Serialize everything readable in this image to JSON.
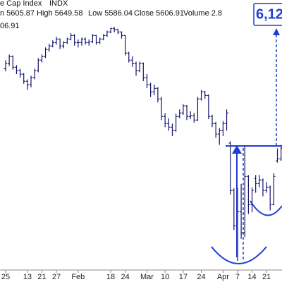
{
  "chart_data": {
    "type": "ohlc",
    "title": "e Cap Index",
    "subtitle": "INDX",
    "annotations": [
      "n 5605.87",
      "High 5649.58",
      "Low 5586.04",
      "Close 5606.91",
      "Volume 2.8",
      "06.91",
      "6,12"
    ],
    "color": "#16166a",
    "annotation_color": "#1f3fd1",
    "ylim": [
      4800,
      6200
    ],
    "categories": [
      "25",
      null,
      null,
      null,
      null,
      null,
      "13",
      null,
      null,
      null,
      "21",
      null,
      null,
      null,
      "27",
      null,
      null,
      null,
      null,
      null,
      "Feb",
      null,
      null,
      null,
      null,
      null,
      null,
      null,
      null,
      "18",
      null,
      null,
      null,
      "24",
      null,
      null,
      null,
      null,
      null,
      "Mar",
      null,
      null,
      null,
      null,
      "10",
      null,
      null,
      null,
      null,
      "17",
      null,
      null,
      null,
      null,
      "24",
      null,
      null,
      null,
      null,
      null,
      "Apr",
      null,
      null,
      null,
      "7",
      null,
      null,
      null,
      "14",
      null,
      null,
      null,
      "21",
      null,
      null,
      null,
      null
    ],
    "open": [
      5920,
      5948,
      5988,
      5928,
      5908,
      5889,
      5849,
      5829,
      5869,
      5908,
      5968,
      5988,
      6028,
      6048,
      6067,
      6087,
      6048,
      6067,
      6087,
      6107,
      6067,
      6067,
      6087,
      6067,
      6072,
      6107,
      6067,
      6087,
      6107,
      6127,
      6147,
      6140,
      6127,
      6107,
      6008,
      5968,
      5948,
      5908,
      5948,
      5869,
      5829,
      5789,
      5809,
      5749,
      5650,
      5610,
      5590,
      5570,
      5650,
      5670,
      5710,
      5650,
      5655,
      5630,
      5749,
      5789,
      5769,
      5650,
      5610,
      5551,
      5570,
      5610,
      5500,
      5233,
      5034,
      5113,
      4994,
      5312,
      5153,
      5300,
      5272,
      5292,
      5233,
      5252,
      5153,
      5400,
      5411
    ],
    "high": [
      5968,
      6000,
      5995,
      5940,
      5920,
      5895,
      5860,
      5880,
      5920,
      5980,
      6000,
      6040,
      6060,
      6080,
      6100,
      6090,
      6075,
      6095,
      6120,
      6115,
      6085,
      6095,
      6095,
      6085,
      6115,
      6110,
      6095,
      6115,
      6135,
      6150,
      6155,
      6145,
      6130,
      6110,
      6015,
      5990,
      5960,
      5960,
      5955,
      5890,
      5840,
      5830,
      5815,
      5760,
      5670,
      5640,
      5610,
      5665,
      5690,
      5720,
      5715,
      5680,
      5670,
      5760,
      5800,
      5795,
      5775,
      5660,
      5620,
      5585,
      5625,
      5690,
      5510,
      5245,
      5250,
      5270,
      5480,
      5320,
      5250,
      5320,
      5320,
      5300,
      5280,
      5260,
      5330,
      5470,
      5490
    ],
    "low": [
      5905,
      5935,
      5915,
      5890,
      5870,
      5835,
      5800,
      5815,
      5860,
      5900,
      5955,
      5980,
      6015,
      6040,
      6055,
      6030,
      6035,
      6060,
      6080,
      6050,
      6040,
      6050,
      6055,
      6050,
      6065,
      6055,
      6060,
      6080,
      6100,
      6120,
      6125,
      6115,
      6090,
      5995,
      5955,
      5930,
      5880,
      5900,
      5850,
      5810,
      5760,
      5770,
      5730,
      5630,
      5590,
      5570,
      5540,
      5565,
      5640,
      5660,
      5630,
      5635,
      5615,
      5625,
      5740,
      5750,
      5635,
      5590,
      5530,
      5490,
      5540,
      5570,
      5210,
      5010,
      4835,
      4960,
      4970,
      5100,
      5110,
      5220,
      5250,
      5200,
      5220,
      5120,
      5150,
      5390,
      5400
    ],
    "close": [
      5948,
      5988,
      5928,
      5908,
      5889,
      5849,
      5829,
      5869,
      5908,
      5968,
      5988,
      6028,
      6048,
      6067,
      6087,
      6048,
      6067,
      6087,
      6107,
      6067,
      6067,
      6087,
      6067,
      6072,
      6107,
      6067,
      6087,
      6107,
      6127,
      6147,
      6140,
      6127,
      6107,
      6008,
      5968,
      5948,
      5908,
      5948,
      5869,
      5829,
      5789,
      5809,
      5749,
      5650,
      5610,
      5590,
      5570,
      5650,
      5670,
      5710,
      5650,
      5655,
      5630,
      5749,
      5789,
      5769,
      5650,
      5610,
      5551,
      5570,
      5610,
      5670,
      5233,
      5034,
      5113,
      4994,
      5312,
      5153,
      5233,
      5272,
      5292,
      5233,
      5252,
      5153,
      5312,
      5411,
      5471
    ]
  }
}
